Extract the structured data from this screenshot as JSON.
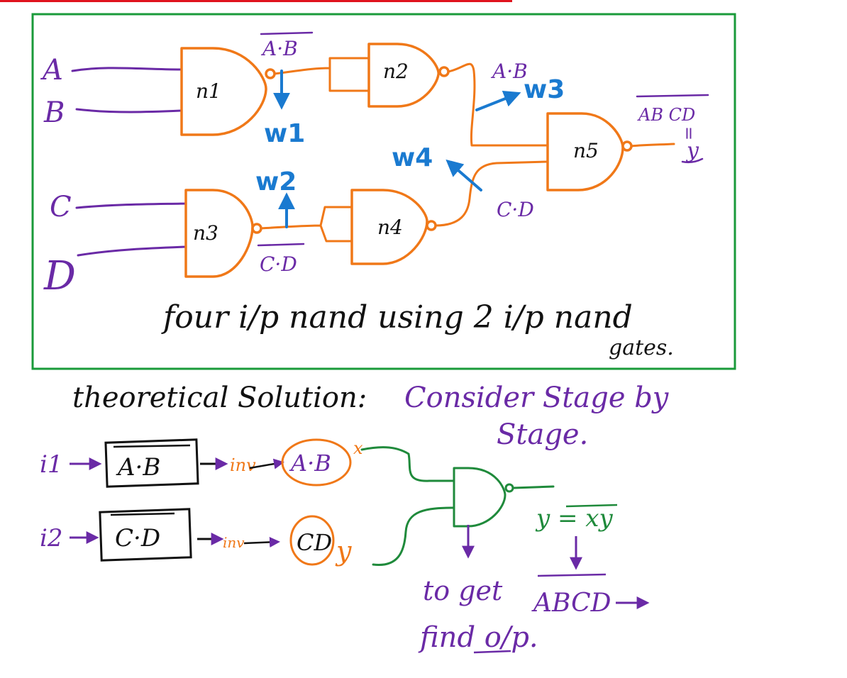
{
  "colors": {
    "frame": "#1a9a3a",
    "topbar": "#e0141e",
    "gate": "#f07818",
    "input_wire": "#6a2aa6",
    "wire_label": "#1a7ad0",
    "ink": "#111111",
    "solution_green": "#1f8a3b"
  },
  "inputs": [
    "A",
    "B",
    "C",
    "D"
  ],
  "gates": [
    "n1",
    "n2",
    "n3",
    "n4",
    "n5"
  ],
  "signal_labels": {
    "n1_out": "A·B",
    "n2_out": "A·B",
    "n4_out": "C·D",
    "n3_out": "C·D",
    "n5_out": "AB CD",
    "equals": "=",
    "y": "y"
  },
  "wires": [
    "w1",
    "w2",
    "w3",
    "w4"
  ],
  "caption_line1": "four i/p nand using 2 i/p nand",
  "caption_line2": "gates.",
  "solution": {
    "heading": "theoretical Solution:",
    "method_line1": "Consider Stage by",
    "method_line2": "Stage.",
    "row1": {
      "label": "i1",
      "boxed": "A·B",
      "inv": "inv",
      "circled": "A·B",
      "var": "x"
    },
    "row2": {
      "label": "i2",
      "boxed": "C·D",
      "inv": "inv",
      "circled": "CD",
      "var": "y"
    },
    "equation": "y = xy",
    "note_line1": "to get",
    "note_line2": "find o/p.",
    "result": "ABCD"
  }
}
